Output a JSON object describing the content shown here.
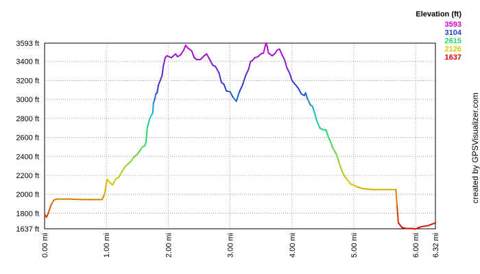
{
  "chart_data": {
    "type": "line",
    "xlabel": "",
    "ylabel": "",
    "xlim": [
      0,
      6.32
    ],
    "ylim": [
      1637,
      3593
    ],
    "x_ticks": [
      {
        "value": 0,
        "label": "0.00 mi"
      },
      {
        "value": 1,
        "label": "1.00 mi"
      },
      {
        "value": 2,
        "label": "2.00 mi"
      },
      {
        "value": 3,
        "label": "3.00 mi"
      },
      {
        "value": 4,
        "label": "4.00 mi"
      },
      {
        "value": 5,
        "label": "5.00 mi"
      },
      {
        "value": 6,
        "label": "6.00 mi"
      },
      {
        "value": 6.32,
        "label": "6.32 mi"
      }
    ],
    "y_ticks": [
      {
        "value": 1637,
        "label": "1637 ft"
      },
      {
        "value": 1800,
        "label": "1800 ft"
      },
      {
        "value": 2000,
        "label": "2000 ft"
      },
      {
        "value": 2200,
        "label": "2200 ft"
      },
      {
        "value": 2400,
        "label": "2400 ft"
      },
      {
        "value": 2600,
        "label": "2600 ft"
      },
      {
        "value": 2800,
        "label": "2800 ft"
      },
      {
        "value": 3000,
        "label": "3000 ft"
      },
      {
        "value": 3200,
        "label": "3200 ft"
      },
      {
        "value": 3400,
        "label": "3400 ft"
      },
      {
        "value": 3593,
        "label": "3593 ft"
      }
    ],
    "legend": {
      "title": "Elevation (ft)",
      "placement": "top-right",
      "entries": [
        {
          "label": "3593",
          "color": "#cc00cc"
        },
        {
          "label": "3104",
          "color": "#1f3fcc"
        },
        {
          "label": "2615",
          "color": "#22dd66"
        },
        {
          "label": "2126",
          "color": "#cccc00"
        },
        {
          "label": "1637",
          "color": "#dd0000"
        }
      ]
    },
    "credit": "created by GPSVisualizer.com",
    "colorscale": [
      {
        "elev": 1637,
        "color": "#dd0000"
      },
      {
        "elev": 2126,
        "color": "#d4c800"
      },
      {
        "elev": 2615,
        "color": "#22dd66"
      },
      {
        "elev": 2860,
        "color": "#11bbdd"
      },
      {
        "elev": 3104,
        "color": "#1f3fcc"
      },
      {
        "elev": 3593,
        "color": "#cc00cc"
      }
    ],
    "series": [
      {
        "x": [
          0.0,
          0.03,
          0.06,
          0.1,
          0.15,
          0.2,
          0.4,
          0.6,
          0.8,
          0.93,
          0.97,
          1.01,
          1.06,
          1.1,
          1.15,
          1.2,
          1.25,
          1.3,
          1.35,
          1.4,
          1.43,
          1.47,
          1.5,
          1.55,
          1.58,
          1.62,
          1.64,
          1.66,
          1.7,
          1.75,
          1.76,
          1.78,
          1.8,
          1.82,
          1.84,
          1.87,
          1.9,
          1.92,
          1.95,
          1.98,
          2.05,
          2.12,
          2.15,
          2.2,
          2.25,
          2.28,
          2.32,
          2.38,
          2.42,
          2.46,
          2.52,
          2.58,
          2.62,
          2.68,
          2.72,
          2.76,
          2.82,
          2.86,
          2.9,
          2.94,
          3.0,
          3.05,
          3.1,
          3.15,
          3.2,
          3.25,
          3.3,
          3.33,
          3.36,
          3.4,
          3.45,
          3.5,
          3.54,
          3.58,
          3.6,
          3.62,
          3.68,
          3.72,
          3.76,
          3.8,
          3.84,
          3.88,
          3.92,
          3.96,
          4.0,
          4.05,
          4.1,
          4.15,
          4.2,
          4.22,
          4.25,
          4.3,
          4.33,
          4.36,
          4.4,
          4.45,
          4.5,
          4.55,
          4.58,
          4.62,
          4.66,
          4.72,
          4.76,
          4.8,
          4.85,
          4.9,
          4.95,
          5.05,
          5.15,
          5.3,
          5.5,
          5.68,
          5.7,
          5.72,
          5.78,
          5.85,
          5.95,
          6.0,
          6.05,
          6.1,
          6.2,
          6.32
        ],
        "y": [
          1790,
          1760,
          1800,
          1880,
          1940,
          1950,
          1950,
          1945,
          1945,
          1945,
          2000,
          2160,
          2120,
          2100,
          2160,
          2180,
          2240,
          2290,
          2320,
          2350,
          2380,
          2410,
          2420,
          2470,
          2500,
          2510,
          2550,
          2700,
          2800,
          2860,
          2960,
          3000,
          3060,
          3070,
          3150,
          3200,
          3250,
          3350,
          3440,
          3460,
          3440,
          3480,
          3450,
          3470,
          3520,
          3570,
          3540,
          3510,
          3440,
          3420,
          3420,
          3460,
          3480,
          3410,
          3360,
          3350,
          3280,
          3180,
          3160,
          3090,
          3080,
          3020,
          2980,
          3080,
          3150,
          3250,
          3320,
          3400,
          3410,
          3440,
          3450,
          3480,
          3490,
          3593,
          3560,
          3490,
          3460,
          3480,
          3520,
          3530,
          3470,
          3420,
          3330,
          3280,
          3200,
          3160,
          3120,
          3060,
          3040,
          3070,
          3010,
          2940,
          2930,
          2870,
          2780,
          2700,
          2680,
          2680,
          2620,
          2560,
          2490,
          2420,
          2340,
          2260,
          2190,
          2150,
          2110,
          2080,
          2060,
          2050,
          2050,
          2050,
          1880,
          1700,
          1650,
          1640,
          1640,
          1635,
          1650,
          1660,
          1670,
          1700
        ]
      }
    ]
  }
}
